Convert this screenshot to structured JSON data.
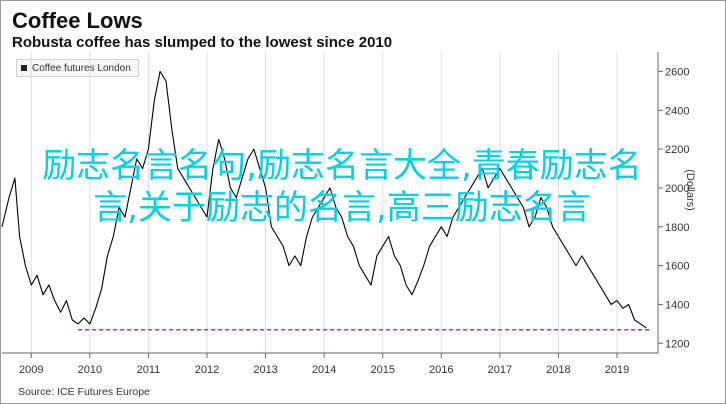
{
  "chart_data": {
    "type": "line",
    "title": "Coffee Lows",
    "subtitle": "Robusta coffee has slumped to the lowest since 2010",
    "ylabel": "(Dollars)",
    "source": "Source: ICE Futures Europe",
    "legend": {
      "position": "top-left",
      "entries": [
        "Coffee futures London"
      ]
    },
    "xlim": [
      2008.5,
      2019.7
    ],
    "ylim": [
      1150,
      2700
    ],
    "grid": {
      "vertical": true,
      "horizontal": false
    },
    "x_ticks": [
      2009,
      2010,
      2011,
      2012,
      2013,
      2014,
      2015,
      2016,
      2017,
      2018,
      2019
    ],
    "y_ticks": [
      1200,
      1400,
      1600,
      1800,
      2000,
      2200,
      2400,
      2600
    ],
    "colors": {
      "line": "#000000",
      "reference": "#b03a6e",
      "grid": "#dddddd",
      "watermark": "#00d2e6"
    },
    "reference_line": {
      "y": 1270,
      "from": 2009.8,
      "to": 2019.55
    },
    "series": [
      {
        "name": "Coffee futures London",
        "x": [
          2008.5,
          2008.62,
          2008.72,
          2008.8,
          2008.9,
          2009.0,
          2009.1,
          2009.2,
          2009.3,
          2009.4,
          2009.5,
          2009.6,
          2009.7,
          2009.8,
          2009.9,
          2010.0,
          2010.1,
          2010.2,
          2010.3,
          2010.4,
          2010.5,
          2010.6,
          2010.7,
          2010.8,
          2010.9,
          2011.0,
          2011.1,
          2011.2,
          2011.3,
          2011.4,
          2011.5,
          2011.6,
          2011.7,
          2011.8,
          2011.9,
          2012.0,
          2012.1,
          2012.2,
          2012.3,
          2012.4,
          2012.5,
          2012.6,
          2012.7,
          2012.8,
          2012.9,
          2013.0,
          2013.1,
          2013.2,
          2013.3,
          2013.4,
          2013.5,
          2013.6,
          2013.7,
          2013.8,
          2013.9,
          2014.0,
          2014.1,
          2014.2,
          2014.3,
          2014.4,
          2014.5,
          2014.6,
          2014.7,
          2014.8,
          2014.9,
          2015.0,
          2015.1,
          2015.2,
          2015.3,
          2015.4,
          2015.5,
          2015.6,
          2015.7,
          2015.8,
          2015.9,
          2016.0,
          2016.1,
          2016.2,
          2016.3,
          2016.4,
          2016.5,
          2016.6,
          2016.7,
          2016.8,
          2016.9,
          2017.0,
          2017.1,
          2017.2,
          2017.3,
          2017.4,
          2017.5,
          2017.6,
          2017.7,
          2017.8,
          2017.9,
          2018.0,
          2018.1,
          2018.2,
          2018.3,
          2018.4,
          2018.5,
          2018.6,
          2018.7,
          2018.8,
          2018.9,
          2019.0,
          2019.1,
          2019.2,
          2019.3,
          2019.4,
          2019.5
        ],
        "values": [
          1800,
          1950,
          2050,
          1750,
          1600,
          1500,
          1550,
          1450,
          1500,
          1420,
          1360,
          1420,
          1320,
          1300,
          1330,
          1300,
          1380,
          1480,
          1650,
          1750,
          1900,
          1850,
          2000,
          2150,
          2100,
          2200,
          2450,
          2600,
          2550,
          2300,
          2100,
          2050,
          2000,
          1950,
          1900,
          1850,
          2100,
          2250,
          2150,
          2000,
          1950,
          2050,
          2150,
          2200,
          2100,
          2000,
          1800,
          1750,
          1700,
          1600,
          1650,
          1600,
          1750,
          1850,
          1900,
          1950,
          2000,
          1900,
          1850,
          1750,
          1700,
          1600,
          1550,
          1500,
          1650,
          1700,
          1750,
          1650,
          1600,
          1500,
          1450,
          1520,
          1600,
          1700,
          1750,
          1800,
          1750,
          1850,
          1900,
          1950,
          2000,
          2050,
          2100,
          2000,
          2050,
          2100,
          2050,
          2000,
          1950,
          1900,
          1800,
          1850,
          1950,
          1900,
          1800,
          1750,
          1700,
          1650,
          1600,
          1650,
          1600,
          1550,
          1500,
          1450,
          1400,
          1420,
          1380,
          1400,
          1320,
          1300,
          1280
        ]
      }
    ]
  },
  "watermark_text": "励志名言名句,励志名言大全,青春励志名言,关于励志的名言,高三励志名言"
}
